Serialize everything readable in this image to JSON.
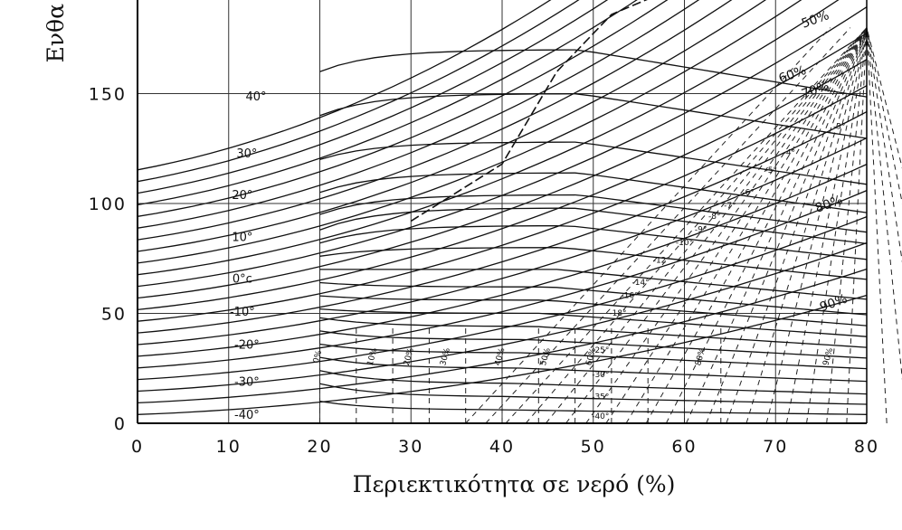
{
  "chart_data": {
    "type": "line",
    "xlabel": "Περιεκτικότητα σε νερό (%)",
    "ylabel": "Ενθα",
    "xlim": [
      0,
      80
    ],
    "ylim": [
      0,
      180
    ],
    "x_ticks": [
      "0",
      "10",
      "20",
      "30",
      "40",
      "50",
      "60",
      "70",
      "80"
    ],
    "y_ticks": [
      "0",
      "50",
      "100",
      "150"
    ],
    "y_tick_values": [
      0,
      50,
      100,
      150
    ],
    "grid": true,
    "isotherm_labels": [
      {
        "text": "40°",
        "x": 13,
        "y": 147
      },
      {
        "text": "30°",
        "x": 12,
        "y": 121
      },
      {
        "text": "20°",
        "x": 11.5,
        "y": 102
      },
      {
        "text": "10°",
        "x": 11.5,
        "y": 83
      },
      {
        "text": "0°c",
        "x": 11.5,
        "y": 64
      },
      {
        "text": "-10°",
        "x": 11.5,
        "y": 49
      },
      {
        "text": "-20°",
        "x": 12,
        "y": 34
      },
      {
        "text": "-30°",
        "x": 12,
        "y": 17
      },
      {
        "text": "-40°",
        "x": 12,
        "y": 2
      },
      {
        "text": "-25°",
        "x": 50.8,
        "y": 32
      },
      {
        "text": "-30°",
        "x": 50.8,
        "y": 21
      },
      {
        "text": "-35°",
        "x": 50.8,
        "y": 11
      },
      {
        "text": "-40°",
        "x": 50.8,
        "y": 2
      },
      {
        "text": "-3°",
        "x": 77,
        "y": 134
      },
      {
        "text": "-4°",
        "x": 71.5,
        "y": 122
      },
      {
        "text": "-5°",
        "x": 69.5,
        "y": 114
      },
      {
        "text": "-6°",
        "x": 67,
        "y": 104
      },
      {
        "text": "-7°",
        "x": 65,
        "y": 98
      },
      {
        "text": "-8°",
        "x": 63.3,
        "y": 93
      },
      {
        "text": "-9°",
        "x": 61.8,
        "y": 87
      },
      {
        "text": "-10°",
        "x": 60,
        "y": 81
      },
      {
        "text": "-12°",
        "x": 57.5,
        "y": 73
      },
      {
        "text": "-14°",
        "x": 55.2,
        "y": 63
      },
      {
        "text": "-16°",
        "x": 54,
        "y": 57
      },
      {
        "text": "-18°",
        "x": 52.7,
        "y": 49
      }
    ],
    "solid_labels": [
      "0%",
      "10%",
      "20%",
      "30%",
      "40%",
      "50%",
      "60%",
      "80%",
      "90%"
    ],
    "percent_labels": [
      {
        "text": "50%",
        "x": 74.5,
        "y": 182
      },
      {
        "text": "60%",
        "x": 72,
        "y": 157
      },
      {
        "text": "70%",
        "x": 74.5,
        "y": 150
      },
      {
        "text": "80%",
        "x": 76,
        "y": 98
      },
      {
        "text": "90%",
        "x": 76.5,
        "y": 53
      }
    ]
  }
}
